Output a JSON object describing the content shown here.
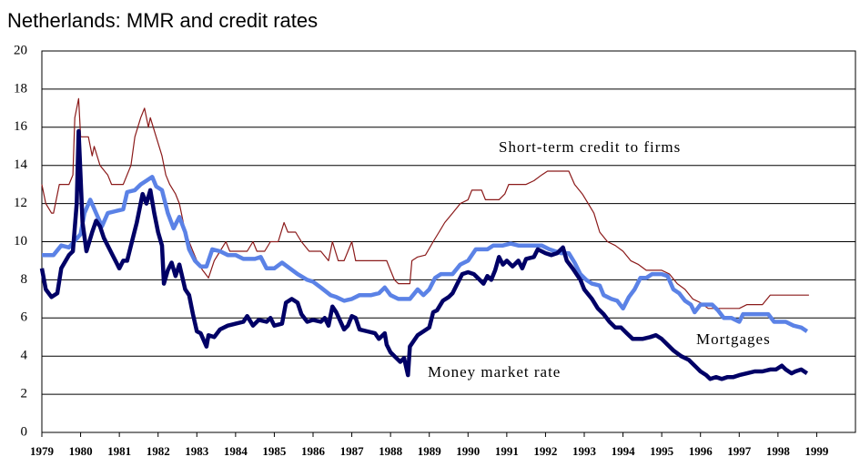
{
  "chart_data": {
    "type": "line",
    "title": "Netherlands: MMR and credit rates",
    "xlim": [
      1979,
      2000
    ],
    "xticks": [
      1979,
      1980,
      1981,
      1982,
      1983,
      1984,
      1985,
      1986,
      1987,
      1988,
      1989,
      1990,
      1991,
      1992,
      1993,
      1994,
      1995,
      1996,
      1997,
      1998,
      1999
    ],
    "ylim": [
      0,
      20
    ],
    "yticks": [
      0,
      2,
      4,
      6,
      8,
      10,
      12,
      14,
      16,
      18,
      20
    ],
    "grid": true,
    "series": [
      {
        "name": "Short-term credit to firms",
        "color": "#8b1a1a",
        "x": [
          1979.0,
          1979.1,
          1979.25,
          1979.3,
          1979.45,
          1979.7,
          1979.8,
          1979.85,
          1979.95,
          1980.0,
          1980.2,
          1980.3,
          1980.35,
          1980.5,
          1980.7,
          1980.8,
          1981.1,
          1981.3,
          1981.4,
          1981.55,
          1981.65,
          1981.75,
          1981.8,
          1981.95,
          1982.1,
          1982.2,
          1982.3,
          1982.45,
          1982.55,
          1982.6,
          1982.7,
          1982.8,
          1982.9,
          1983.0,
          1983.15,
          1983.3,
          1983.45,
          1983.6,
          1983.75,
          1983.85,
          1984.3,
          1984.45,
          1984.55,
          1984.75,
          1984.9,
          1985.1,
          1985.25,
          1985.35,
          1985.55,
          1985.7,
          1985.9,
          1986.2,
          1986.4,
          1986.5,
          1986.65,
          1986.8,
          1987.0,
          1987.1,
          1987.9,
          1988.0,
          1988.1,
          1988.2,
          1988.5,
          1988.55,
          1988.7,
          1988.9,
          1989.1,
          1989.25,
          1989.4,
          1989.6,
          1989.8,
          1990.0,
          1990.1,
          1990.35,
          1990.45,
          1990.8,
          1990.95,
          1991.05,
          1991.5,
          1991.7,
          1991.9,
          1992.05,
          1992.6,
          1992.75,
          1992.95,
          1993.1,
          1993.25,
          1993.4,
          1993.6,
          1993.8,
          1994.0,
          1994.2,
          1994.4,
          1994.6,
          1994.8,
          1995.0,
          1995.2,
          1995.4,
          1995.6,
          1995.8,
          1996.0,
          1996.2,
          1996.5,
          1996.8,
          1997.0,
          1997.2,
          1997.6,
          1997.8,
          1998.0,
          1998.8
        ],
        "values": [
          13.0,
          12.0,
          11.5,
          11.5,
          13.0,
          13.0,
          13.5,
          16.5,
          17.5,
          15.5,
          15.5,
          14.5,
          15.0,
          14.0,
          13.5,
          13.0,
          13.0,
          14.0,
          15.5,
          16.5,
          17.0,
          16.0,
          16.5,
          15.5,
          14.5,
          13.5,
          13.0,
          12.5,
          12.0,
          11.5,
          10.5,
          10.0,
          9.5,
          9.0,
          8.5,
          8.1,
          9.0,
          9.5,
          10.0,
          9.5,
          9.5,
          10.0,
          9.5,
          9.5,
          10.0,
          10.0,
          11.0,
          10.5,
          10.5,
          10.0,
          9.5,
          9.5,
          9.0,
          10.0,
          9.0,
          9.0,
          10.0,
          9.0,
          9.0,
          8.5,
          8.0,
          7.8,
          7.8,
          9.0,
          9.2,
          9.3,
          10.0,
          10.5,
          11.0,
          11.5,
          12.0,
          12.2,
          12.7,
          12.7,
          12.2,
          12.2,
          12.5,
          13.0,
          13.0,
          13.2,
          13.5,
          13.7,
          13.7,
          13.0,
          12.5,
          12.0,
          11.5,
          10.5,
          10.0,
          9.8,
          9.5,
          9.0,
          8.8,
          8.5,
          8.5,
          8.5,
          8.3,
          7.8,
          7.5,
          7.0,
          6.8,
          6.5,
          6.5,
          6.5,
          6.5,
          6.7,
          6.7,
          7.2,
          7.2,
          7.2
        ]
      },
      {
        "name": "Mortgages",
        "color": "#5b82e6",
        "x": [
          1979.0,
          1979.3,
          1979.5,
          1979.7,
          1980.0,
          1980.1,
          1980.25,
          1980.4,
          1980.55,
          1980.7,
          1980.9,
          1981.1,
          1981.2,
          1981.4,
          1981.55,
          1981.7,
          1981.85,
          1981.95,
          1982.1,
          1982.25,
          1982.4,
          1982.55,
          1982.7,
          1982.8,
          1982.95,
          1983.1,
          1983.25,
          1983.4,
          1983.6,
          1983.8,
          1984.0,
          1984.2,
          1984.5,
          1984.65,
          1984.8,
          1985.0,
          1985.2,
          1985.4,
          1985.6,
          1985.85,
          1986.0,
          1986.2,
          1986.45,
          1986.6,
          1986.8,
          1987.0,
          1987.2,
          1987.5,
          1987.7,
          1987.85,
          1988.0,
          1988.2,
          1988.5,
          1988.7,
          1988.85,
          1989.0,
          1989.15,
          1989.3,
          1989.6,
          1989.8,
          1990.0,
          1990.2,
          1990.5,
          1990.65,
          1990.9,
          1991.1,
          1991.3,
          1991.6,
          1991.9,
          1992.1,
          1992.4,
          1992.6,
          1992.75,
          1992.9,
          1993.05,
          1993.2,
          1993.4,
          1993.5,
          1993.7,
          1993.85,
          1994.0,
          1994.15,
          1994.3,
          1994.45,
          1994.6,
          1994.75,
          1995.0,
          1995.15,
          1995.3,
          1995.45,
          1995.6,
          1995.75,
          1995.85,
          1996.0,
          1996.3,
          1996.45,
          1996.6,
          1996.8,
          1997.0,
          1997.1,
          1997.5,
          1997.75,
          1997.9,
          1998.2,
          1998.4,
          1998.6,
          1998.75
        ],
        "values": [
          9.3,
          9.3,
          9.8,
          9.7,
          10.4,
          11.5,
          12.2,
          11.5,
          10.8,
          11.5,
          11.6,
          11.7,
          12.6,
          12.7,
          13.0,
          13.2,
          13.4,
          12.9,
          12.7,
          11.5,
          10.7,
          11.3,
          10.5,
          9.6,
          9.0,
          8.7,
          8.7,
          9.6,
          9.5,
          9.3,
          9.3,
          9.1,
          9.1,
          9.2,
          8.6,
          8.6,
          8.9,
          8.6,
          8.3,
          8.0,
          7.9,
          7.6,
          7.2,
          7.1,
          6.9,
          7.0,
          7.2,
          7.2,
          7.3,
          7.6,
          7.2,
          7.0,
          7.0,
          7.5,
          7.2,
          7.5,
          8.1,
          8.3,
          8.3,
          8.8,
          9.0,
          9.6,
          9.6,
          9.8,
          9.8,
          9.9,
          9.8,
          9.8,
          9.8,
          9.6,
          9.4,
          9.4,
          8.9,
          8.3,
          8.0,
          7.8,
          7.7,
          7.2,
          7.0,
          6.9,
          6.5,
          7.1,
          7.5,
          8.1,
          8.1,
          8.3,
          8.3,
          8.2,
          7.5,
          7.3,
          6.9,
          6.7,
          6.3,
          6.7,
          6.7,
          6.4,
          6.0,
          6.0,
          5.8,
          6.2,
          6.2,
          6.2,
          5.8,
          5.8,
          5.6,
          5.5,
          5.3
        ]
      },
      {
        "name": "Money market rate",
        "color": "#000066",
        "x": [
          1979.0,
          1979.1,
          1979.25,
          1979.4,
          1979.5,
          1979.7,
          1979.8,
          1979.9,
          1979.95,
          1980.05,
          1980.15,
          1980.3,
          1980.4,
          1980.5,
          1980.6,
          1980.8,
          1981.0,
          1981.1,
          1981.2,
          1981.3,
          1981.45,
          1981.6,
          1981.7,
          1981.8,
          1981.9,
          1982.0,
          1982.1,
          1982.15,
          1982.25,
          1982.35,
          1982.45,
          1982.55,
          1982.7,
          1982.8,
          1982.9,
          1983.0,
          1983.1,
          1983.25,
          1983.3,
          1983.45,
          1983.6,
          1983.8,
          1984.0,
          1984.2,
          1984.3,
          1984.45,
          1984.6,
          1984.8,
          1984.9,
          1985.0,
          1985.2,
          1985.3,
          1985.45,
          1985.6,
          1985.7,
          1985.85,
          1986.0,
          1986.2,
          1986.3,
          1986.4,
          1986.5,
          1986.6,
          1986.8,
          1986.9,
          1987.0,
          1987.1,
          1987.2,
          1987.4,
          1987.6,
          1987.7,
          1987.85,
          1987.9,
          1988.0,
          1988.15,
          1988.25,
          1988.35,
          1988.45,
          1988.5,
          1988.6,
          1988.7,
          1988.85,
          1989.0,
          1989.1,
          1989.2,
          1989.35,
          1989.5,
          1989.6,
          1989.75,
          1989.85,
          1990.0,
          1990.15,
          1990.3,
          1990.4,
          1990.5,
          1990.6,
          1990.7,
          1990.8,
          1990.9,
          1991.0,
          1991.15,
          1991.3,
          1991.4,
          1991.5,
          1991.7,
          1991.8,
          1992.0,
          1992.15,
          1992.3,
          1992.45,
          1992.55,
          1992.7,
          1992.9,
          1993.0,
          1993.2,
          1993.35,
          1993.5,
          1993.65,
          1993.8,
          1993.95,
          1994.1,
          1994.25,
          1994.5,
          1994.7,
          1994.85,
          1995.0,
          1995.15,
          1995.3,
          1995.5,
          1995.7,
          1995.9,
          1996.0,
          1996.15,
          1996.25,
          1996.4,
          1996.55,
          1996.7,
          1996.85,
          1997.0,
          1997.2,
          1997.4,
          1997.6,
          1997.8,
          1997.95,
          1998.1,
          1998.2,
          1998.35,
          1998.45,
          1998.6,
          1998.75
        ],
        "values": [
          8.6,
          7.5,
          7.1,
          7.3,
          8.6,
          9.3,
          9.5,
          12.0,
          15.8,
          11.0,
          9.5,
          10.5,
          11.1,
          10.8,
          10.2,
          9.4,
          8.6,
          9.0,
          9.0,
          9.8,
          11.0,
          12.5,
          12.0,
          12.7,
          11.5,
          10.5,
          9.8,
          7.8,
          8.5,
          8.9,
          8.2,
          8.8,
          7.5,
          7.2,
          6.2,
          5.3,
          5.2,
          4.5,
          5.1,
          5.0,
          5.4,
          5.6,
          5.7,
          5.8,
          6.1,
          5.6,
          5.9,
          5.8,
          6.0,
          5.6,
          5.7,
          6.8,
          7.0,
          6.8,
          6.2,
          5.8,
          5.9,
          5.8,
          6.0,
          5.6,
          6.6,
          6.3,
          5.4,
          5.6,
          6.1,
          6.0,
          5.4,
          5.3,
          5.2,
          4.9,
          5.2,
          4.6,
          4.2,
          3.9,
          3.7,
          3.9,
          3.0,
          4.5,
          4.8,
          5.1,
          5.3,
          5.5,
          6.3,
          6.4,
          6.9,
          7.1,
          7.3,
          7.9,
          8.3,
          8.4,
          8.3,
          8.0,
          7.8,
          8.2,
          8.0,
          8.5,
          9.2,
          8.8,
          9.0,
          8.7,
          9.0,
          8.6,
          9.1,
          9.2,
          9.6,
          9.4,
          9.3,
          9.4,
          9.7,
          9.0,
          8.6,
          8.0,
          7.5,
          7.0,
          6.5,
          6.2,
          5.8,
          5.5,
          5.5,
          5.2,
          4.9,
          4.9,
          5.0,
          5.1,
          4.9,
          4.6,
          4.3,
          4.0,
          3.8,
          3.4,
          3.2,
          3.0,
          2.8,
          2.9,
          2.8,
          2.9,
          2.9,
          3.0,
          3.1,
          3.2,
          3.2,
          3.3,
          3.3,
          3.5,
          3.3,
          3.1,
          3.2,
          3.3,
          3.1
        ]
      }
    ]
  }
}
